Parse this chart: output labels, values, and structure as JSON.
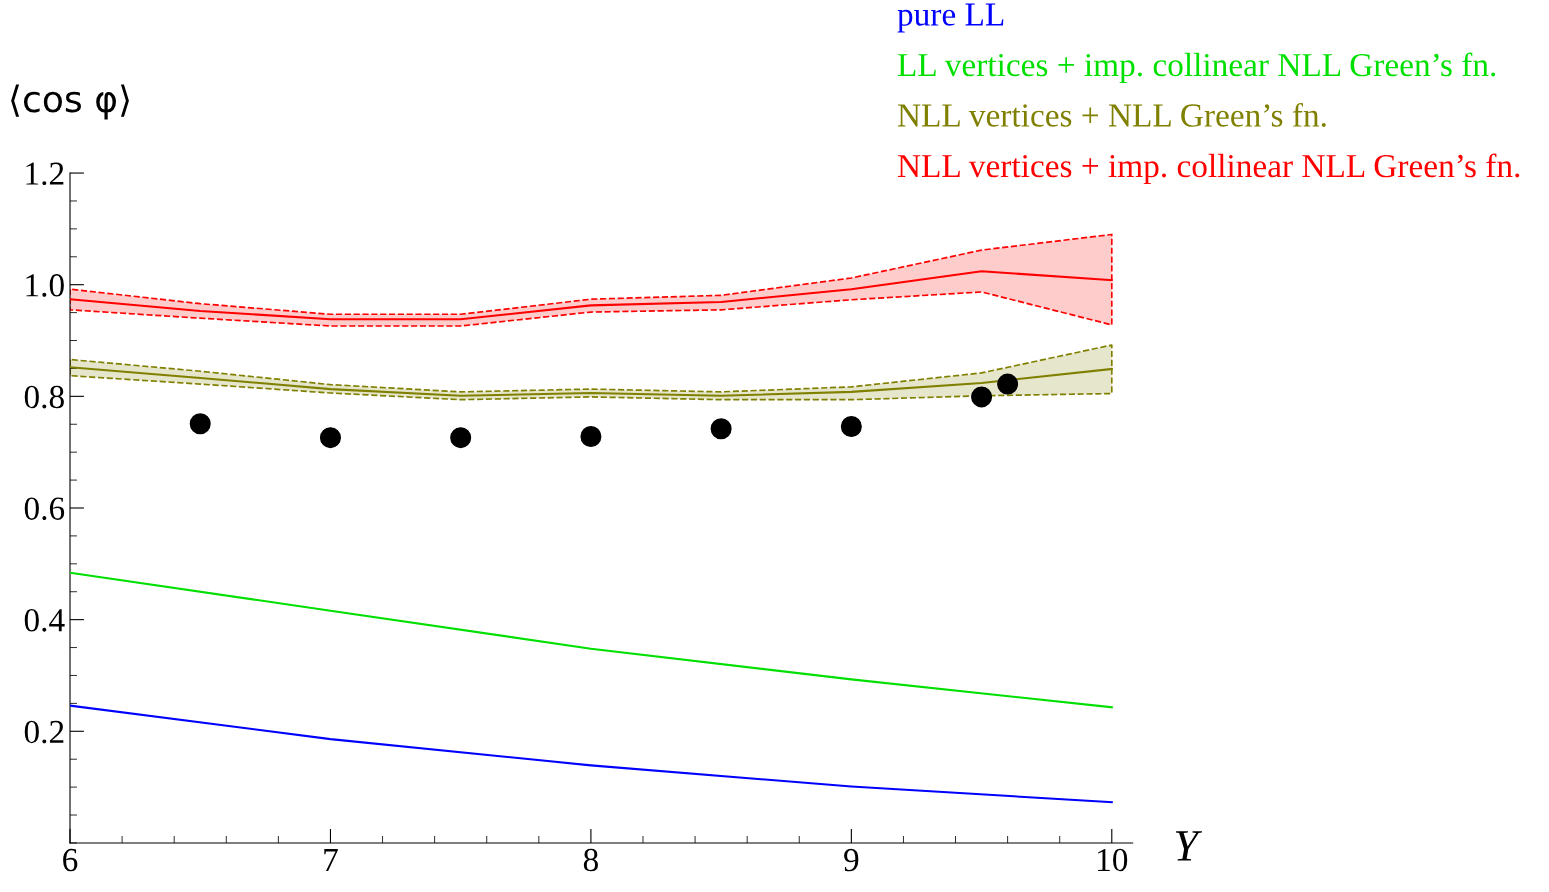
{
  "chart_data": {
    "type": "line",
    "ylabel": "⟨cos φ⟩",
    "xlabel": "Y",
    "xlim": [
      6,
      10.08
    ],
    "ylim": [
      0,
      1.2
    ],
    "xticks": [
      6,
      7,
      8,
      9,
      10
    ],
    "yticks": [
      0.2,
      0.4,
      0.6,
      0.8,
      {
        "value": 1.0,
        "label": "1.0"
      },
      1.2
    ],
    "grid": false,
    "legend": "top right",
    "marker": "none",
    "line_style": "solid",
    "series": [
      {
        "name": "pure LL",
        "color": "#0000ff",
        "x": [
          6,
          7,
          8,
          9,
          10
        ],
        "values": [
          0.246,
          0.186,
          0.139,
          0.101,
          0.073
        ]
      },
      {
        "name": "LL vertices + imp. collinear NLL Green’s fn.",
        "color": "#00e000",
        "x": [
          6,
          7,
          8,
          9,
          10
        ],
        "values": [
          0.484,
          0.416,
          0.348,
          0.293,
          0.243
        ]
      },
      {
        "name": "NLL vertices + NLL Green’s fn.",
        "color": "#808000",
        "x": [
          6,
          6.5,
          7,
          7.5,
          8,
          8.5,
          9,
          9.5,
          10
        ],
        "values": [
          0.852,
          0.833,
          0.813,
          0.801,
          0.806,
          0.801,
          0.808,
          0.824,
          0.849
        ],
        "lower": [
          0.837,
          0.822,
          0.806,
          0.794,
          0.799,
          0.794,
          0.794,
          0.801,
          0.805
        ],
        "upper": [
          0.866,
          0.845,
          0.821,
          0.808,
          0.813,
          0.808,
          0.817,
          0.842,
          0.892
        ]
      },
      {
        "name": "NLL vertices + imp. collinear NLL Green’s fn.",
        "color": "#ff0000",
        "x": [
          6,
          6.5,
          7,
          7.5,
          8,
          8.5,
          9,
          9.5,
          10
        ],
        "values": [
          0.974,
          0.953,
          0.938,
          0.938,
          0.963,
          0.969,
          0.992,
          1.024,
          1.008
        ],
        "lower": [
          0.955,
          0.94,
          0.926,
          0.926,
          0.951,
          0.955,
          0.973,
          0.987,
          0.928
        ],
        "upper": [
          0.992,
          0.966,
          0.947,
          0.947,
          0.974,
          0.981,
          1.012,
          1.062,
          1.09
        ]
      },
      {
        "type": "scatter",
        "marker": "circle",
        "color": "#000000",
        "x": [
          6.5,
          7,
          7.5,
          8,
          8.5,
          9,
          9.5,
          9.6
        ],
        "values": [
          0.751,
          0.726,
          0.726,
          0.728,
          0.742,
          0.746,
          0.799,
          0.822
        ]
      }
    ]
  }
}
